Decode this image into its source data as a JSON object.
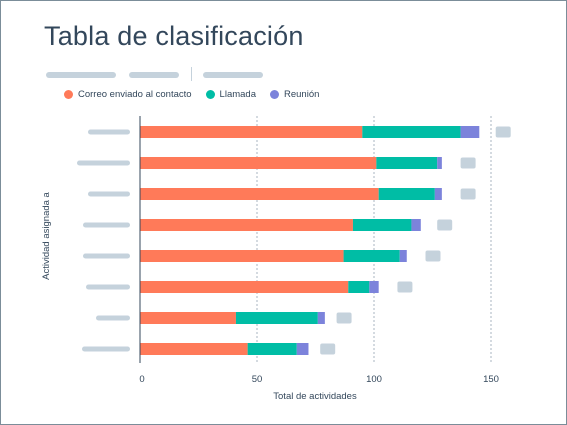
{
  "title": "Tabla de clasificación",
  "legend": [
    {
      "label": "Correo enviado al contacto",
      "color": "#ff7a59"
    },
    {
      "label": "Llamada",
      "color": "#00bda5"
    },
    {
      "label": "Reunión",
      "color": "#7c83db"
    }
  ],
  "colors": {
    "other": "#c5d2dc",
    "axis": "#33475b",
    "grid": "#a9b6c0"
  },
  "chart_data": {
    "type": "bar",
    "orientation": "horizontal",
    "stacked": true,
    "xlabel": "Total de actividades",
    "ylabel": "Actividad asignada a",
    "xlim": [
      0,
      160
    ],
    "xticks": [
      0,
      50,
      100,
      150
    ],
    "grid": "vertical-dashed",
    "legend_position": "top-left",
    "series": [
      {
        "name": "Correo enviado al contacto",
        "values": [
          95,
          101,
          102,
          91,
          87,
          89,
          41,
          46
        ]
      },
      {
        "name": "Llamada",
        "values": [
          42,
          26,
          24,
          25,
          24,
          9,
          35,
          21
        ]
      },
      {
        "name": "Reunión",
        "values": [
          8,
          2,
          3,
          4,
          3,
          4,
          3,
          5
        ]
      }
    ],
    "total_placeholder_values": [
      155,
      140,
      140,
      130,
      125,
      113,
      87,
      80
    ]
  }
}
